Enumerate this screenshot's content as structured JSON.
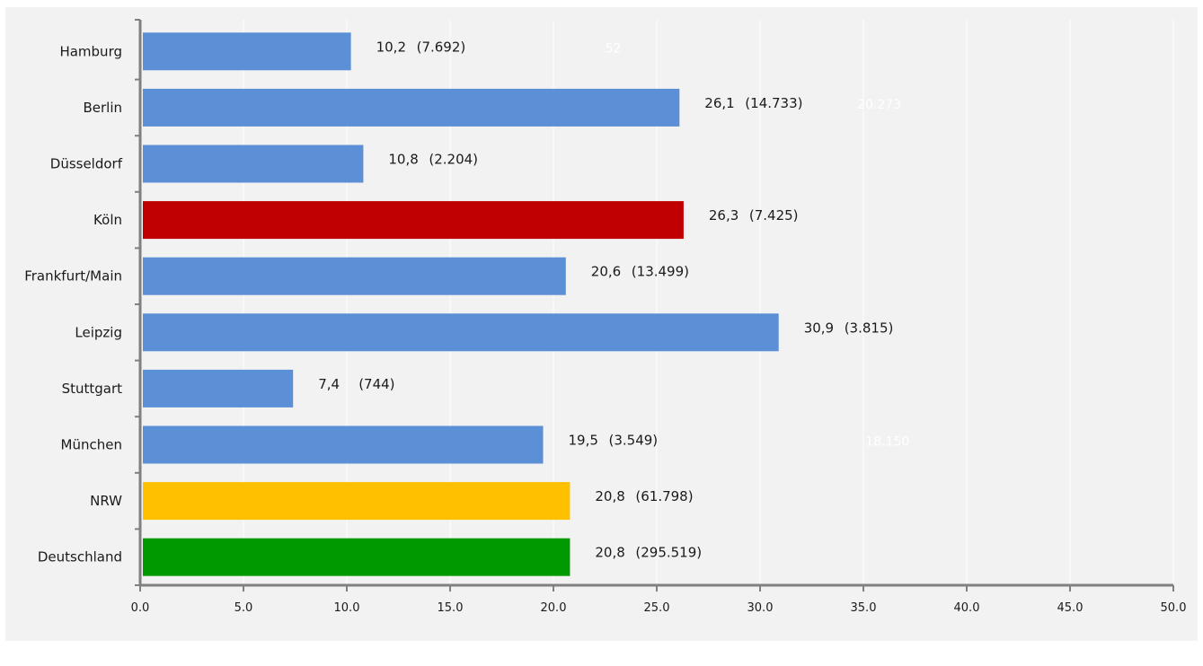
{
  "chart_data": {
    "type": "bar",
    "orientation": "horizontal",
    "title": "",
    "xlabel": "",
    "ylabel": "",
    "xlim": [
      0,
      50
    ],
    "x_ticks": [
      "0.0",
      "5.0",
      "10.0",
      "15.0",
      "20.0",
      "25.0",
      "30.0",
      "35.0",
      "40.0",
      "45.0",
      "50.0"
    ],
    "grid": "vertical",
    "legend": "none",
    "categories": [
      "Hamburg",
      "Berlin",
      "Düsseldorf",
      "Köln",
      "Frankfurt/Main",
      "Leipzig",
      "Stuttgart",
      "München",
      "NRW",
      "Deutschland"
    ],
    "values": [
      10.2,
      26.1,
      10.8,
      26.3,
      20.6,
      30.9,
      7.4,
      19.5,
      20.8,
      20.8
    ],
    "value_labels": [
      "10,2",
      "26,1",
      "10,8",
      "26,3",
      "20,6",
      "30,9",
      "7,4",
      "19,5",
      "20,8",
      "20,8"
    ],
    "count_labels": [
      "(7.692)",
      "(14.733)",
      "(2.204)",
      "(7.425)",
      "(13.499)",
      "(3.815)",
      "(744)",
      "(3.549)",
      "(61.798)",
      "(295.519)"
    ],
    "bar_colors": [
      "#5b8fd6",
      "#5b8fd6",
      "#5b8fd6",
      "#c00000",
      "#5b8fd6",
      "#5b8fd6",
      "#5b8fd6",
      "#5b8fd6",
      "#ffc000",
      "#009a00"
    ],
    "faint_annotations": [
      {
        "text": "52",
        "category": "Hamburg",
        "x": 22.5
      },
      {
        "text": "20.273",
        "category": "Berlin",
        "x": 34.7
      },
      {
        "text": "18.150",
        "category": "München",
        "x": 35.1
      }
    ],
    "colors": {
      "axis": "#808080",
      "grid": "#ffffff",
      "background": "#f2f2f2"
    }
  }
}
